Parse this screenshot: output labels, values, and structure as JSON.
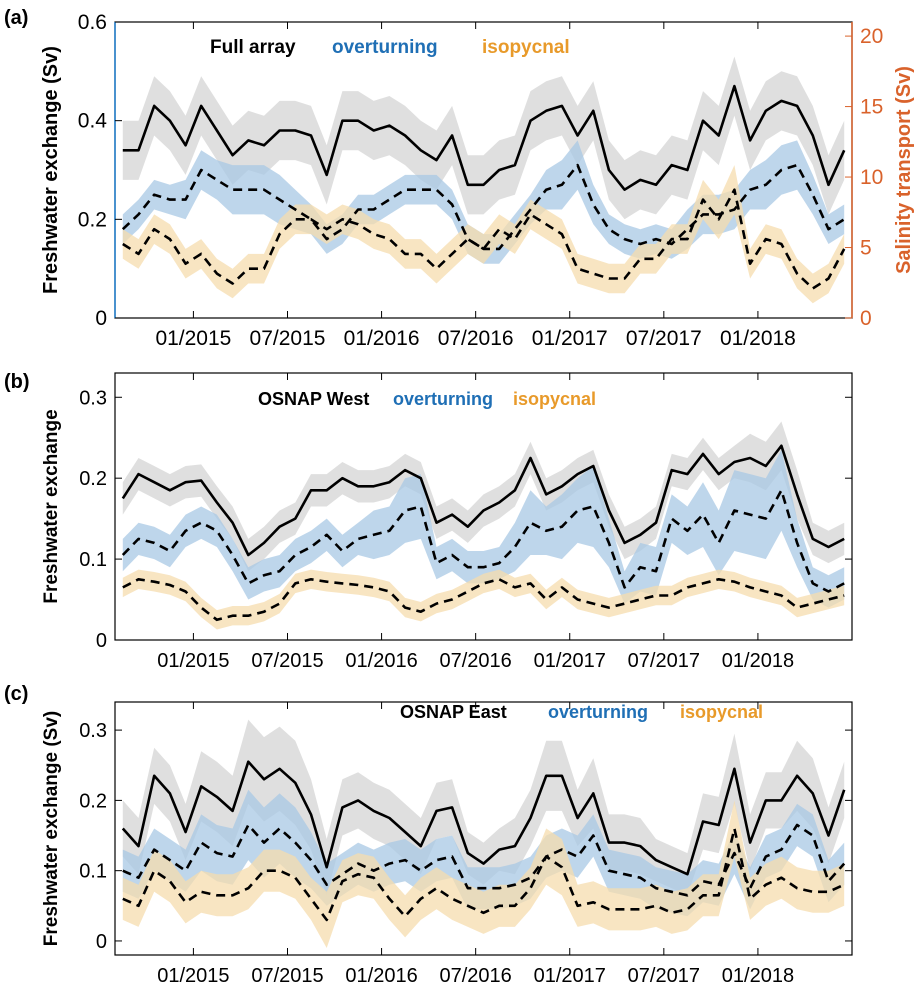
{
  "colors": {
    "total": "#000000",
    "total_band": "#d9d9d9",
    "overturning": "#1f6fb5",
    "overturning_band": "#a8c8e4",
    "isopycnal": "#e89a2a",
    "isopycnal_band": "#f6dcae",
    "right_axis": "#d9622b",
    "left_axis_line_a": "#1f7fd0"
  },
  "x_ticks": [
    "01/2015",
    "07/2015",
    "01/2016",
    "07/2016",
    "01/2017",
    "07/2017",
    "01/2018"
  ],
  "x_range": [
    "08/2014",
    "05/2018"
  ],
  "chart_data": [
    {
      "panel": "(a)",
      "type": "line",
      "ylabel": "Freshwater exchange (Sv)",
      "y2label": "Salinity transport (Sv)",
      "ylim": [
        0,
        0.6
      ],
      "y2lim": [
        0,
        21
      ],
      "yticks": [
        "0",
        "0.2",
        "0.4",
        "0.6"
      ],
      "y2ticks": [
        "0",
        "5",
        "10",
        "15",
        "20"
      ],
      "legend": [
        "Full array",
        "overturning",
        "isopycnal"
      ],
      "series": [
        {
          "name": "Full array",
          "style": "solid",
          "values": [
            0.34,
            0.34,
            0.43,
            0.4,
            0.35,
            0.43,
            0.38,
            0.33,
            0.36,
            0.35,
            0.38,
            0.38,
            0.37,
            0.29,
            0.4,
            0.4,
            0.38,
            0.39,
            0.37,
            0.34,
            0.32,
            0.37,
            0.27,
            0.27,
            0.3,
            0.31,
            0.4,
            0.42,
            0.43,
            0.37,
            0.42,
            0.3,
            0.26,
            0.28,
            0.27,
            0.31,
            0.3,
            0.4,
            0.37,
            0.47,
            0.36,
            0.42,
            0.44,
            0.43,
            0.37,
            0.27,
            0.34
          ],
          "band_width": [
            0.06,
            0.06,
            0.06,
            0.06,
            0.06,
            0.06,
            0.06,
            0.06,
            0.06,
            0.06,
            0.06,
            0.06,
            0.06,
            0.06,
            0.06,
            0.06,
            0.06,
            0.06,
            0.06,
            0.06,
            0.06,
            0.06,
            0.06,
            0.06,
            0.06,
            0.06,
            0.06,
            0.06,
            0.06,
            0.06,
            0.06,
            0.06,
            0.06,
            0.06,
            0.06,
            0.06,
            0.06,
            0.06,
            0.06,
            0.06,
            0.06,
            0.06,
            0.06,
            0.06,
            0.06,
            0.06,
            0.06
          ]
        },
        {
          "name": "overturning",
          "style": "dashed",
          "values": [
            0.18,
            0.21,
            0.25,
            0.24,
            0.24,
            0.3,
            0.28,
            0.26,
            0.26,
            0.26,
            0.24,
            0.22,
            0.2,
            0.16,
            0.18,
            0.22,
            0.22,
            0.24,
            0.26,
            0.26,
            0.26,
            0.23,
            0.16,
            0.14,
            0.14,
            0.18,
            0.22,
            0.26,
            0.27,
            0.31,
            0.23,
            0.18,
            0.16,
            0.15,
            0.16,
            0.15,
            0.18,
            0.21,
            0.21,
            0.22,
            0.26,
            0.27,
            0.3,
            0.31,
            0.25,
            0.18,
            0.2
          ],
          "band_width": [
            0.03,
            0.03,
            0.03,
            0.03,
            0.04,
            0.04,
            0.04,
            0.05,
            0.05,
            0.05,
            0.05,
            0.04,
            0.03,
            0.03,
            0.03,
            0.03,
            0.03,
            0.03,
            0.03,
            0.03,
            0.03,
            0.03,
            0.03,
            0.03,
            0.03,
            0.03,
            0.03,
            0.04,
            0.05,
            0.05,
            0.04,
            0.03,
            0.03,
            0.03,
            0.03,
            0.03,
            0.04,
            0.04,
            0.04,
            0.04,
            0.04,
            0.05,
            0.05,
            0.05,
            0.04,
            0.03,
            0.03
          ]
        },
        {
          "name": "isopycnal",
          "style": "dashed",
          "values": [
            0.15,
            0.13,
            0.18,
            0.16,
            0.11,
            0.13,
            0.09,
            0.07,
            0.1,
            0.1,
            0.17,
            0.2,
            0.2,
            0.18,
            0.2,
            0.19,
            0.17,
            0.16,
            0.13,
            0.13,
            0.1,
            0.13,
            0.16,
            0.14,
            0.18,
            0.16,
            0.21,
            0.19,
            0.17,
            0.1,
            0.09,
            0.08,
            0.08,
            0.12,
            0.12,
            0.16,
            0.16,
            0.24,
            0.2,
            0.26,
            0.11,
            0.16,
            0.15,
            0.09,
            0.06,
            0.08,
            0.14
          ],
          "band_width": [
            0.03,
            0.03,
            0.03,
            0.03,
            0.03,
            0.03,
            0.03,
            0.03,
            0.03,
            0.03,
            0.03,
            0.03,
            0.03,
            0.03,
            0.03,
            0.03,
            0.03,
            0.03,
            0.03,
            0.03,
            0.03,
            0.03,
            0.03,
            0.03,
            0.03,
            0.03,
            0.03,
            0.03,
            0.03,
            0.03,
            0.03,
            0.03,
            0.03,
            0.03,
            0.03,
            0.03,
            0.03,
            0.04,
            0.04,
            0.05,
            0.03,
            0.03,
            0.03,
            0.03,
            0.03,
            0.03,
            0.03
          ]
        }
      ]
    },
    {
      "panel": "(b)",
      "type": "line",
      "ylabel": "Freshwater exchange",
      "ylim": [
        0,
        0.33
      ],
      "yticks": [
        "0",
        "0.1",
        "0.2",
        "0.3"
      ],
      "legend": [
        "OSNAP West",
        "overturning",
        "isopycnal"
      ],
      "series": [
        {
          "name": "OSNAP West",
          "style": "solid",
          "values": [
            0.175,
            0.205,
            0.195,
            0.185,
            0.195,
            0.197,
            0.17,
            0.145,
            0.105,
            0.12,
            0.14,
            0.15,
            0.185,
            0.185,
            0.2,
            0.19,
            0.19,
            0.195,
            0.21,
            0.2,
            0.145,
            0.155,
            0.14,
            0.16,
            0.17,
            0.185,
            0.225,
            0.18,
            0.19,
            0.205,
            0.215,
            0.16,
            0.12,
            0.13,
            0.145,
            0.21,
            0.205,
            0.23,
            0.205,
            0.22,
            0.225,
            0.215,
            0.24,
            0.18,
            0.125,
            0.115,
            0.125
          ],
          "band_width": [
            0.02,
            0.02,
            0.02,
            0.02,
            0.02,
            0.02,
            0.02,
            0.02,
            0.02,
            0.02,
            0.02,
            0.02,
            0.02,
            0.02,
            0.02,
            0.02,
            0.02,
            0.02,
            0.02,
            0.02,
            0.02,
            0.02,
            0.02,
            0.02,
            0.02,
            0.02,
            0.02,
            0.02,
            0.02,
            0.02,
            0.02,
            0.02,
            0.02,
            0.02,
            0.02,
            0.02,
            0.02,
            0.02,
            0.02,
            0.02,
            0.03,
            0.03,
            0.03,
            0.03,
            0.02,
            0.02,
            0.02
          ]
        },
        {
          "name": "overturning",
          "style": "dashed",
          "values": [
            0.105,
            0.125,
            0.12,
            0.11,
            0.135,
            0.145,
            0.135,
            0.105,
            0.07,
            0.08,
            0.085,
            0.105,
            0.115,
            0.13,
            0.11,
            0.125,
            0.13,
            0.135,
            0.16,
            0.165,
            0.095,
            0.105,
            0.09,
            0.09,
            0.095,
            0.115,
            0.145,
            0.135,
            0.14,
            0.16,
            0.165,
            0.12,
            0.065,
            0.09,
            0.085,
            0.15,
            0.135,
            0.155,
            0.12,
            0.16,
            0.155,
            0.15,
            0.185,
            0.12,
            0.07,
            0.06,
            0.07
          ],
          "band_width": [
            0.02,
            0.02,
            0.02,
            0.02,
            0.02,
            0.02,
            0.02,
            0.02,
            0.02,
            0.02,
            0.02,
            0.02,
            0.02,
            0.02,
            0.02,
            0.02,
            0.03,
            0.03,
            0.04,
            0.04,
            0.02,
            0.02,
            0.02,
            0.02,
            0.02,
            0.03,
            0.04,
            0.03,
            0.04,
            0.04,
            0.05,
            0.03,
            0.02,
            0.03,
            0.03,
            0.03,
            0.03,
            0.04,
            0.04,
            0.05,
            0.05,
            0.05,
            0.05,
            0.03,
            0.02,
            0.02,
            0.02
          ]
        },
        {
          "name": "isopycnal",
          "style": "dashed",
          "values": [
            0.065,
            0.075,
            0.072,
            0.068,
            0.06,
            0.04,
            0.025,
            0.03,
            0.03,
            0.035,
            0.045,
            0.07,
            0.075,
            0.072,
            0.07,
            0.068,
            0.065,
            0.06,
            0.04,
            0.035,
            0.045,
            0.05,
            0.06,
            0.07,
            0.075,
            0.065,
            0.07,
            0.05,
            0.065,
            0.05,
            0.045,
            0.04,
            0.045,
            0.05,
            0.055,
            0.055,
            0.065,
            0.07,
            0.075,
            0.072,
            0.065,
            0.06,
            0.055,
            0.04,
            0.045,
            0.05,
            0.055
          ],
          "band_width": [
            0.012,
            0.012,
            0.012,
            0.012,
            0.012,
            0.012,
            0.012,
            0.012,
            0.012,
            0.012,
            0.012,
            0.012,
            0.012,
            0.012,
            0.012,
            0.012,
            0.012,
            0.012,
            0.012,
            0.012,
            0.012,
            0.012,
            0.012,
            0.012,
            0.012,
            0.012,
            0.012,
            0.012,
            0.012,
            0.012,
            0.012,
            0.012,
            0.012,
            0.012,
            0.012,
            0.012,
            0.012,
            0.012,
            0.012,
            0.012,
            0.012,
            0.012,
            0.012,
            0.012,
            0.012,
            0.012,
            0.012
          ]
        }
      ]
    },
    {
      "panel": "(c)",
      "type": "line",
      "ylabel": "Freshwater exchange (Sv)",
      "ylim": [
        -0.02,
        0.34
      ],
      "yticks": [
        "0",
        "0.1",
        "0.2",
        "0.3"
      ],
      "legend": [
        "OSNAP East",
        "overturning",
        "isopycnal"
      ],
      "series": [
        {
          "name": "OSNAP East",
          "style": "solid",
          "values": [
            0.16,
            0.135,
            0.235,
            0.21,
            0.155,
            0.22,
            0.205,
            0.185,
            0.255,
            0.23,
            0.245,
            0.225,
            0.18,
            0.105,
            0.19,
            0.2,
            0.185,
            0.175,
            0.155,
            0.135,
            0.185,
            0.19,
            0.125,
            0.11,
            0.13,
            0.135,
            0.175,
            0.235,
            0.235,
            0.175,
            0.21,
            0.14,
            0.14,
            0.135,
            0.115,
            0.105,
            0.095,
            0.17,
            0.165,
            0.245,
            0.14,
            0.2,
            0.2,
            0.235,
            0.21,
            0.15,
            0.215
          ],
          "band_width": [
            0.04,
            0.04,
            0.04,
            0.04,
            0.04,
            0.05,
            0.05,
            0.05,
            0.06,
            0.06,
            0.06,
            0.06,
            0.05,
            0.04,
            0.04,
            0.04,
            0.04,
            0.04,
            0.04,
            0.04,
            0.04,
            0.04,
            0.03,
            0.03,
            0.03,
            0.04,
            0.04,
            0.05,
            0.05,
            0.04,
            0.05,
            0.04,
            0.04,
            0.04,
            0.03,
            0.03,
            0.03,
            0.04,
            0.04,
            0.05,
            0.04,
            0.04,
            0.04,
            0.05,
            0.05,
            0.04,
            0.04
          ]
        },
        {
          "name": "overturning",
          "style": "dashed",
          "values": [
            0.1,
            0.09,
            0.13,
            0.115,
            0.1,
            0.14,
            0.125,
            0.12,
            0.165,
            0.14,
            0.16,
            0.14,
            0.115,
            0.08,
            0.095,
            0.11,
            0.1,
            0.11,
            0.115,
            0.1,
            0.115,
            0.12,
            0.075,
            0.075,
            0.075,
            0.08,
            0.09,
            0.12,
            0.13,
            0.12,
            0.15,
            0.1,
            0.095,
            0.09,
            0.075,
            0.07,
            0.065,
            0.085,
            0.08,
            0.125,
            0.075,
            0.12,
            0.13,
            0.165,
            0.15,
            0.085,
            0.11
          ],
          "band_width": [
            0.03,
            0.03,
            0.03,
            0.03,
            0.03,
            0.04,
            0.04,
            0.04,
            0.05,
            0.05,
            0.05,
            0.05,
            0.04,
            0.03,
            0.03,
            0.03,
            0.03,
            0.03,
            0.03,
            0.03,
            0.03,
            0.03,
            0.03,
            0.03,
            0.03,
            0.03,
            0.03,
            0.03,
            0.03,
            0.03,
            0.03,
            0.03,
            0.03,
            0.03,
            0.03,
            0.03,
            0.03,
            0.03,
            0.03,
            0.03,
            0.03,
            0.03,
            0.03,
            0.03,
            0.03,
            0.03,
            0.03
          ]
        },
        {
          "name": "isopycnal",
          "style": "dashed",
          "values": [
            0.06,
            0.05,
            0.1,
            0.085,
            0.055,
            0.07,
            0.065,
            0.065,
            0.075,
            0.1,
            0.1,
            0.09,
            0.06,
            0.03,
            0.085,
            0.095,
            0.09,
            0.06,
            0.035,
            0.06,
            0.075,
            0.06,
            0.05,
            0.04,
            0.05,
            0.05,
            0.075,
            0.12,
            0.105,
            0.05,
            0.055,
            0.045,
            0.045,
            0.045,
            0.05,
            0.04,
            0.045,
            0.065,
            0.065,
            0.16,
            0.06,
            0.08,
            0.09,
            0.075,
            0.07,
            0.07,
            0.08
          ],
          "band_width": [
            0.03,
            0.03,
            0.03,
            0.03,
            0.03,
            0.03,
            0.03,
            0.03,
            0.03,
            0.03,
            0.03,
            0.03,
            0.03,
            0.04,
            0.03,
            0.03,
            0.03,
            0.03,
            0.03,
            0.03,
            0.03,
            0.03,
            0.03,
            0.03,
            0.03,
            0.03,
            0.03,
            0.04,
            0.04,
            0.03,
            0.03,
            0.03,
            0.03,
            0.03,
            0.03,
            0.03,
            0.03,
            0.03,
            0.03,
            0.04,
            0.03,
            0.03,
            0.03,
            0.03,
            0.03,
            0.03,
            0.03
          ]
        }
      ]
    }
  ]
}
